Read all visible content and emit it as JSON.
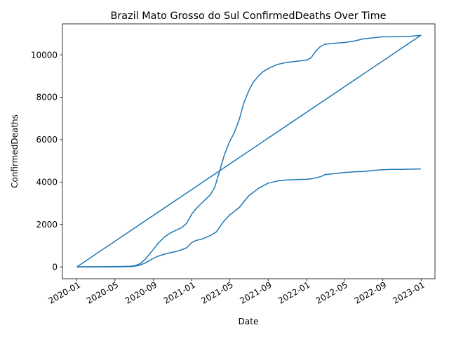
{
  "chart_data": {
    "type": "line",
    "title": "Brazil Mato Grosso do Sul ConfirmedDeaths Over Time",
    "xlabel": "Date",
    "ylabel": "ConfirmedDeaths",
    "grid": false,
    "line_color": "#1f77b4",
    "xlim": [
      "2019-11-16",
      "2023-02-14"
    ],
    "ylim": [
      -560,
      11460
    ],
    "x_ticks": [
      "2020-01",
      "2020-05",
      "2020-09",
      "2021-01",
      "2021-05",
      "2021-09",
      "2022-01",
      "2022-05",
      "2022-09",
      "2023-01"
    ],
    "y_ticks": [
      0,
      2000,
      4000,
      6000,
      8000,
      10000
    ],
    "series": [
      {
        "x": [
          "2020-01-01",
          "2020-03-15",
          "2020-05-15",
          "2020-06-20",
          "2020-07-05",
          "2020-07-20",
          "2020-08-05",
          "2020-08-25",
          "2020-09-15",
          "2020-10-05",
          "2020-10-25",
          "2020-11-15",
          "2020-11-30",
          "2020-12-15",
          "2021-01-01",
          "2021-01-15",
          "2021-02-01",
          "2021-02-15",
          "2021-03-01",
          "2021-03-15",
          "2021-04-01",
          "2021-04-15",
          "2021-05-01",
          "2021-05-15",
          "2021-06-01",
          "2021-06-15",
          "2021-07-01",
          "2021-07-15",
          "2021-08-01",
          "2021-08-15",
          "2021-09-01",
          "2021-09-15",
          "2021-10-01",
          "2021-11-01",
          "2021-12-01",
          "2022-01-01",
          "2022-01-15",
          "2022-02-01",
          "2022-02-15",
          "2022-03-01",
          "2022-04-01",
          "2022-05-01",
          "2022-06-01",
          "2022-07-01",
          "2022-08-01",
          "2022-09-01",
          "2022-10-01",
          "2022-11-01",
          "2022-12-01",
          "2022-12-31",
          "2020-01-01"
        ],
        "y": [
          0,
          2,
          15,
          30,
          60,
          150,
          350,
          700,
          1100,
          1400,
          1600,
          1750,
          1850,
          2050,
          2500,
          2750,
          3000,
          3200,
          3400,
          3750,
          4600,
          5300,
          5900,
          6300,
          6950,
          7700,
          8300,
          8700,
          9000,
          9200,
          9350,
          9450,
          9550,
          9650,
          9700,
          9750,
          9850,
          10200,
          10400,
          10500,
          10550,
          10580,
          10650,
          10750,
          10800,
          10850,
          10850,
          10860,
          10880,
          10920,
          0
        ]
      },
      {
        "x": [
          "2020-01-01",
          "2020-05-15",
          "2020-06-25",
          "2020-07-15",
          "2020-08-05",
          "2020-08-25",
          "2020-09-15",
          "2020-10-10",
          "2020-11-05",
          "2020-11-25",
          "2020-12-15",
          "2021-01-01",
          "2021-01-15",
          "2021-02-01",
          "2021-03-01",
          "2021-03-20",
          "2021-04-10",
          "2021-05-01",
          "2021-05-15",
          "2021-06-01",
          "2021-07-01",
          "2021-08-01",
          "2021-09-01",
          "2021-10-01",
          "2021-11-01",
          "2021-12-01",
          "2022-01-01",
          "2022-01-15",
          "2022-02-15",
          "2022-03-01",
          "2022-04-01",
          "2022-05-01",
          "2022-06-01",
          "2022-07-01",
          "2022-08-01",
          "2022-09-01",
          "2022-10-01",
          "2022-11-01",
          "2022-12-01",
          "2022-12-31"
        ],
        "y": [
          0,
          2,
          15,
          60,
          180,
          350,
          500,
          620,
          700,
          780,
          900,
          1150,
          1250,
          1300,
          1480,
          1650,
          2100,
          2450,
          2600,
          2800,
          3350,
          3700,
          3950,
          4050,
          4100,
          4120,
          4130,
          4150,
          4250,
          4350,
          4400,
          4450,
          4480,
          4500,
          4550,
          4580,
          4600,
          4600,
          4610,
          4620
        ]
      }
    ]
  }
}
